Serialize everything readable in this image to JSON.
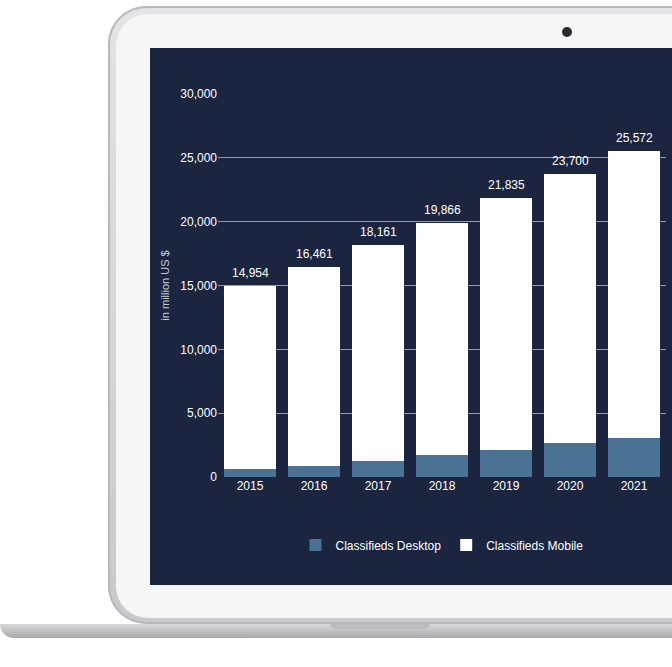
{
  "chart_data": {
    "type": "bar",
    "stacked": true,
    "categories": [
      "2015",
      "2016",
      "2017",
      "2018",
      "2019",
      "2020",
      "2021"
    ],
    "series": [
      {
        "name": "Classifieds Desktop",
        "color": "#4a7093",
        "values": [
          600,
          900,
          1250,
          1700,
          2150,
          2650,
          3050
        ]
      },
      {
        "name": "Classifieds Mobile",
        "color": "#ffffff",
        "values": [
          14354,
          15561,
          16911,
          18166,
          19685,
          21050,
          22522
        ]
      }
    ],
    "totals": {
      "values": [
        14954,
        16461,
        18161,
        19866,
        21835,
        23700,
        25572
      ],
      "value_labels": [
        "14,954",
        "16,461",
        "18,161",
        "19,866",
        "21,835",
        "23,700",
        "25,572"
      ]
    },
    "y_label": "in million US $",
    "ylim": [
      0,
      30000
    ],
    "yticks": [
      0,
      {
        "value": 5000,
        "label": "5,000"
      },
      {
        "value": 10000,
        "label": "10,000"
      },
      {
        "value": 15000,
        "label": "15,000"
      },
      {
        "value": 20000,
        "label": "20,000"
      },
      {
        "value": 25000,
        "label": "25,000"
      },
      {
        "value": 30000,
        "label": "30,000"
      }
    ],
    "grid": true,
    "legend": "bottom"
  }
}
